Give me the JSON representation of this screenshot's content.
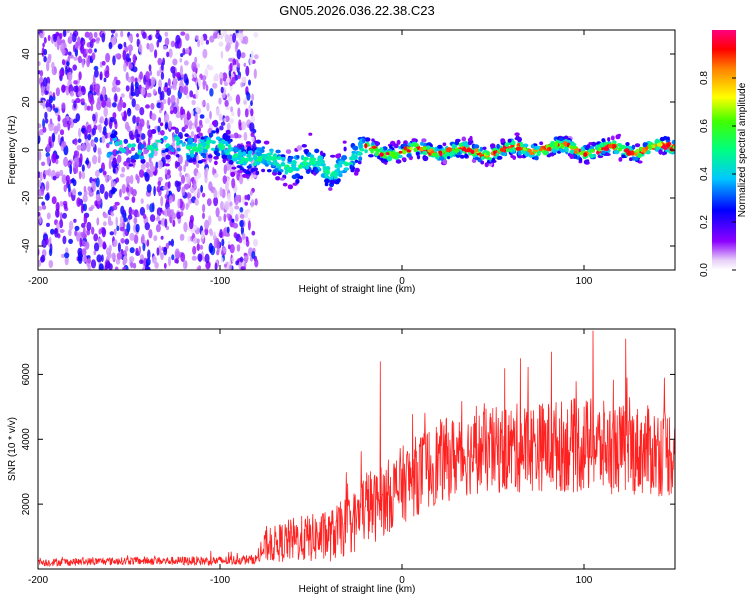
{
  "chart_data": [
    {
      "type": "heatmap",
      "title": "GN05.2026.036.22.38.C23",
      "xlabel": "Height of straight line (km)",
      "ylabel": "Frequency (Hz)",
      "xlim": [
        -200,
        150
      ],
      "ylim": [
        -50,
        50
      ],
      "x_ticks": [
        -200,
        -100,
        0,
        100
      ],
      "x_tick_labels": [
        "-200",
        "-100",
        "0",
        "100"
      ],
      "y_ticks": [
        -40,
        -20,
        0,
        20,
        40
      ],
      "y_tick_labels": [
        "-40",
        "-20",
        "0",
        "20",
        "40"
      ],
      "colorbar": {
        "label": "Normalized spectral amplitude",
        "range": [
          0,
          1
        ],
        "ticks": [
          0,
          0.2,
          0.4,
          0.6,
          0.8
        ],
        "tick_labels": [
          "0.0",
          "0.2",
          "0.4",
          "0.6",
          "0.8"
        ]
      },
      "ridge": {
        "description_x": [
          -160,
          -140,
          -120,
          -100,
          -80,
          -60,
          -50,
          -40,
          -30,
          -20,
          0,
          20,
          40,
          60,
          80,
          100,
          120,
          150
        ],
        "frequency_hz": [
          0,
          1,
          2,
          1,
          -4,
          -6,
          -5,
          -10,
          -4,
          0,
          -1,
          0,
          -1,
          0,
          1,
          0,
          0,
          1
        ]
      }
    },
    {
      "type": "line",
      "xlabel": "Height of straight line (km)",
      "ylabel": "SNR (10 * v/v)",
      "xlim": [
        -200,
        150
      ],
      "ylim": [
        0,
        7400
      ],
      "x_ticks": [
        -200,
        -100,
        0,
        100
      ],
      "x_tick_labels": [
        "-200",
        "-100",
        "0",
        "100"
      ],
      "y_ticks": [
        2000,
        4000,
        6000
      ],
      "y_tick_labels": [
        "2000",
        "4000",
        "6000"
      ],
      "color": "#ff2020",
      "envelope_x": [
        -200,
        -150,
        -100,
        -80,
        -75,
        -60,
        -40,
        -25,
        -20,
        -15,
        0,
        20,
        40,
        60,
        80,
        100,
        120,
        150
      ],
      "envelope_mean": [
        200,
        250,
        250,
        300,
        700,
        900,
        1000,
        1500,
        2000,
        1900,
        2600,
        3300,
        3600,
        3700,
        3800,
        3800,
        3700,
        3600
      ],
      "envelope_spread": [
        120,
        120,
        150,
        150,
        500,
        700,
        800,
        1000,
        1200,
        1100,
        1200,
        1300,
        1300,
        1400,
        1400,
        1500,
        1400,
        1400
      ],
      "peaks": [
        {
          "x": -12,
          "y": 6400
        },
        {
          "x": 105,
          "y": 7350
        },
        {
          "x": 65,
          "y": 6500
        },
        {
          "x": 123,
          "y": 7100
        },
        {
          "x": 82,
          "y": 6700
        }
      ]
    }
  ]
}
